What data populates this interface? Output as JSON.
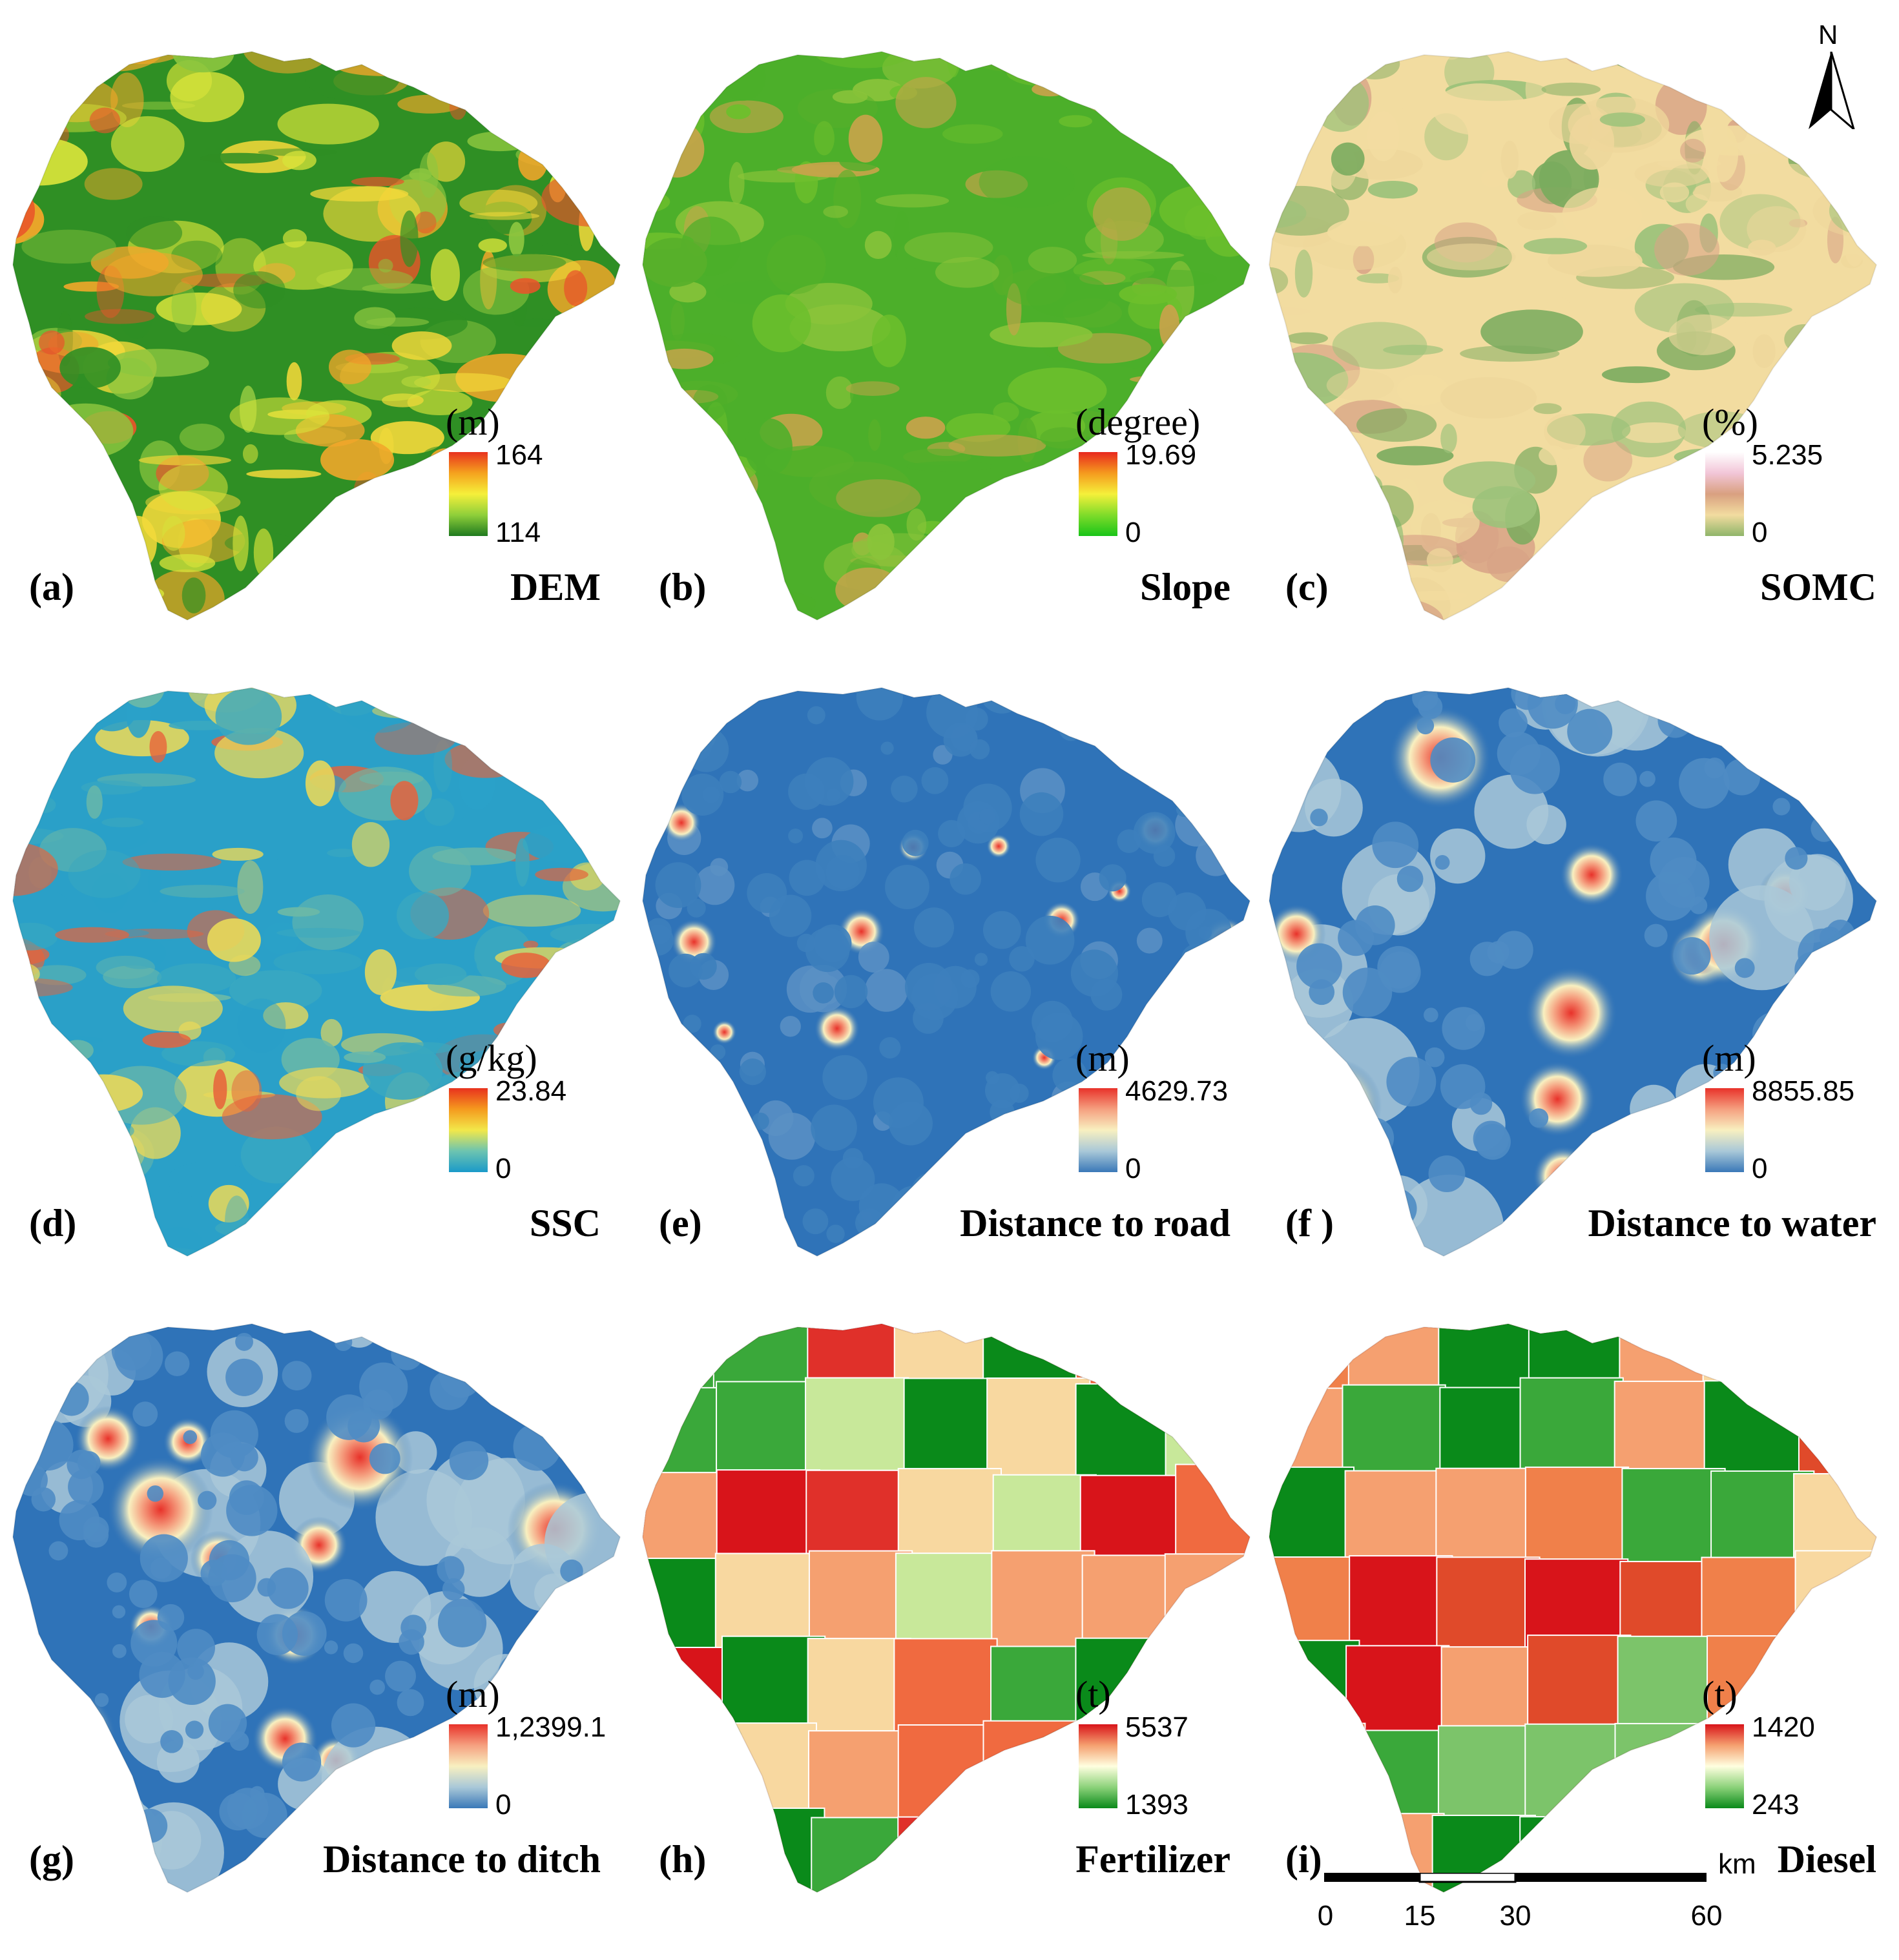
{
  "north_arrow": {
    "letter": "N",
    "icon": "north-arrow-icon"
  },
  "scale_bar": {
    "ticks": [
      "0",
      "15",
      "30",
      "60"
    ],
    "unit": "km"
  },
  "panels": [
    {
      "label": "(a)",
      "title": "DEM",
      "unit": "(m)",
      "max": "164",
      "min": "114",
      "ramp": [
        "#1f7a1f",
        "#8fcf3a",
        "#f5f03a",
        "#f5a21e",
        "#e8321e"
      ],
      "fill": [
        "#2f8f24",
        "#8cc63f",
        "#d7e33a",
        "#f3d93a",
        "#f2a72a",
        "#e9542a"
      ]
    },
    {
      "label": "(b)",
      "title": "Slope",
      "unit": "(degree)",
      "max": "19.69",
      "min": "0",
      "ramp": [
        "#19c419",
        "#7fdc2a",
        "#f5f03a",
        "#f59a1e",
        "#e8281e"
      ],
      "fill": [
        "#4caf2a",
        "#6cbf2c",
        "#58b02a",
        "#8ac43a",
        "#c7a44a"
      ]
    },
    {
      "label": "(c)",
      "title": "SOMC",
      "unit": "(%)",
      "max": "5.235",
      "min": "0",
      "ramp": [
        "#8fb56a",
        "#f2dca0",
        "#d9a080",
        "#f2c6d8",
        "#ffffff"
      ],
      "fill": [
        "#f2dca0",
        "#eed79b",
        "#9cc27a",
        "#d8a386",
        "#7aab5e"
      ]
    },
    {
      "label": "(d)",
      "title": "SSC",
      "unit": "(g/kg)",
      "max": "23.84",
      "min": "0",
      "ramp": [
        "#1a9ac9",
        "#6cc4b0",
        "#f2e84a",
        "#f59a1e",
        "#e8321e"
      ],
      "fill": [
        "#2aa0c8",
        "#3aa8c0",
        "#6ab8a8",
        "#e8d85a",
        "#e8623a"
      ]
    },
    {
      "label": "(e)",
      "title": "Distance to road",
      "unit": "(m)",
      "max": "4629.73",
      "min": "0",
      "ramp": [
        "#3a78b8",
        "#a9c8d8",
        "#f8f0c0",
        "#f5a080",
        "#e8322a"
      ],
      "fill": [
        "#2f73b8",
        "#3d7fbc",
        "#5a90c4",
        "#f3e8b8",
        "#e8482a"
      ]
    },
    {
      "label": "(f )",
      "title": "Distance to water",
      "unit": "(m)",
      "max": "8855.85",
      "min": "0",
      "ramp": [
        "#3a78b8",
        "#a9c8d8",
        "#f8f0c0",
        "#f5a080",
        "#e8322a"
      ],
      "fill": [
        "#2f73b8",
        "#4f8cc4",
        "#a9c8d8",
        "#f3e8b8",
        "#e84a2a"
      ]
    },
    {
      "label": "(g)",
      "title": "Distance to ditch",
      "unit": "(m)",
      "max": "1,2399.1",
      "min": "0",
      "ramp": [
        "#3a78b8",
        "#a9c8d8",
        "#f8f0c0",
        "#f5a080",
        "#e8322a"
      ],
      "fill": [
        "#2f73b8",
        "#4f8cc4",
        "#a9c8d8",
        "#f3e8b8",
        "#e84a2a"
      ]
    },
    {
      "label": "(h)",
      "title": "Fertilizer",
      "unit": "(t)",
      "max": "5537",
      "min": "1393",
      "ramp": [
        "#0a8a1a",
        "#8cd27a",
        "#ffffe0",
        "#f5a070",
        "#d8141a"
      ],
      "fill": [
        "#d8141a",
        "#f5a070",
        "#0a8a1a",
        "#c8e89a",
        "#f8d8a0",
        "#3aa83a",
        "#f06a40",
        "#e0302a"
      ]
    },
    {
      "label": "(i)",
      "title": "Diesel",
      "unit": "(t)",
      "max": "1420",
      "min": "243",
      "ramp": [
        "#0a8a1a",
        "#8cd27a",
        "#ffffe0",
        "#f5a070",
        "#d8141a"
      ],
      "fill": [
        "#d8141a",
        "#f5a070",
        "#0a8a1a",
        "#7cc46a",
        "#f8d8a0",
        "#3aa83a",
        "#f0804a",
        "#e04a2a"
      ]
    }
  ]
}
